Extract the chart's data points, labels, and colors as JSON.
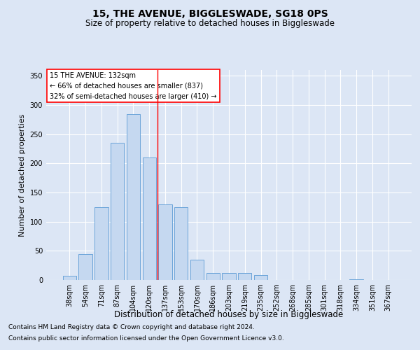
{
  "title": "15, THE AVENUE, BIGGLESWADE, SG18 0PS",
  "subtitle": "Size of property relative to detached houses in Biggleswade",
  "xlabel": "Distribution of detached houses by size in Biggleswade",
  "ylabel": "Number of detached properties",
  "categories": [
    "38sqm",
    "54sqm",
    "71sqm",
    "87sqm",
    "104sqm",
    "120sqm",
    "137sqm",
    "153sqm",
    "170sqm",
    "186sqm",
    "203sqm",
    "219sqm",
    "235sqm",
    "252sqm",
    "268sqm",
    "285sqm",
    "301sqm",
    "318sqm",
    "334sqm",
    "351sqm",
    "367sqm"
  ],
  "values": [
    7,
    45,
    125,
    235,
    285,
    210,
    130,
    125,
    35,
    12,
    12,
    12,
    8,
    0,
    0,
    0,
    0,
    0,
    1,
    0,
    0
  ],
  "bar_color": "#c5d8f0",
  "bar_edge_color": "#5b9bd5",
  "background_color": "#dce6f5",
  "grid_color": "#ffffff",
  "vline_x": 5.5,
  "vline_color": "red",
  "annotation_text": "15 THE AVENUE: 132sqm\n← 66% of detached houses are smaller (837)\n32% of semi-detached houses are larger (410) →",
  "annotation_box_color": "white",
  "annotation_box_edgecolor": "red",
  "footnote1": "Contains HM Land Registry data © Crown copyright and database right 2024.",
  "footnote2": "Contains public sector information licensed under the Open Government Licence v3.0.",
  "ylim": [
    0,
    360
  ],
  "yticks": [
    0,
    50,
    100,
    150,
    200,
    250,
    300,
    350
  ],
  "title_fontsize": 10,
  "subtitle_fontsize": 8.5,
  "xlabel_fontsize": 8.5,
  "ylabel_fontsize": 8,
  "tick_fontsize": 7,
  "footnote_fontsize": 6.5,
  "annotation_fontsize": 7
}
